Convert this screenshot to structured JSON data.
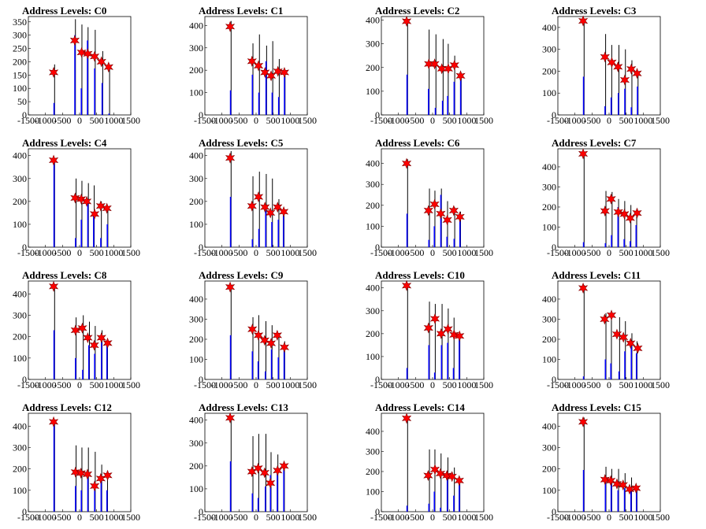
{
  "colors": {
    "outline": "#000000",
    "histogram": "#0000ff",
    "marker": "#ff0000",
    "frame": "#000000"
  },
  "chart_data": {
    "type": "bar",
    "xlim": [
      -1500,
      1500
    ],
    "xticks": [
      "-1500",
      "-1000",
      "-500",
      "0",
      "500",
      "1000",
      "1500"
    ],
    "grid": false,
    "legend": "none",
    "panels": [
      {
        "title": "Address Levels: C0",
        "ylim": [
          0,
          370
        ],
        "yticks": [
          "0",
          "50",
          "100",
          "150",
          "200",
          "250",
          "300",
          "350"
        ],
        "spikes": [
          [
            -750,
            190,
            45
          ],
          [
            -140,
            360,
            300
          ],
          [
            50,
            340,
            100
          ],
          [
            230,
            330,
            280
          ],
          [
            440,
            320,
            175
          ],
          [
            660,
            240,
            120
          ],
          [
            860,
            180,
            5
          ]
        ],
        "markers": [
          [
            -760,
            160
          ],
          [
            -140,
            280
          ],
          [
            60,
            235
          ],
          [
            240,
            230
          ],
          [
            440,
            220
          ],
          [
            640,
            200
          ],
          [
            850,
            180
          ]
        ]
      },
      {
        "title": "Address Levels: C1",
        "ylim": [
          0,
          440
        ],
        "yticks": [
          "0",
          "100",
          "200",
          "300",
          "400"
        ],
        "spikes": [
          [
            -750,
            420,
            110
          ],
          [
            -110,
            320,
            180
          ],
          [
            80,
            360,
            100
          ],
          [
            290,
            310,
            240
          ],
          [
            470,
            330,
            100
          ],
          [
            660,
            250,
            80
          ],
          [
            830,
            190,
            170
          ]
        ],
        "markers": [
          [
            -760,
            395
          ],
          [
            -120,
            240
          ],
          [
            70,
            220
          ],
          [
            260,
            190
          ],
          [
            440,
            175
          ],
          [
            640,
            195
          ],
          [
            830,
            190
          ]
        ]
      },
      {
        "title": "Address Levels: C2",
        "ylim": [
          0,
          415
        ],
        "yticks": [
          "0",
          "100",
          "200",
          "300",
          "400"
        ],
        "spikes": [
          [
            -750,
            400,
            170
          ],
          [
            -120,
            360,
            110
          ],
          [
            80,
            340,
            30
          ],
          [
            290,
            320,
            60
          ],
          [
            440,
            300,
            80
          ],
          [
            630,
            250,
            140
          ],
          [
            820,
            170,
            160
          ]
        ],
        "markers": [
          [
            -760,
            395
          ],
          [
            -110,
            215
          ],
          [
            60,
            215
          ],
          [
            270,
            195
          ],
          [
            460,
            195
          ],
          [
            640,
            210
          ],
          [
            820,
            165
          ]
        ]
      },
      {
        "title": "Address Levels: C3",
        "ylim": [
          0,
          450
        ],
        "yticks": [
          "0",
          "100",
          "200",
          "300",
          "400"
        ],
        "spikes": [
          [
            -750,
            440,
            175
          ],
          [
            -120,
            370,
            40
          ],
          [
            60,
            320,
            80
          ],
          [
            270,
            320,
            100
          ],
          [
            460,
            300,
            120
          ],
          [
            650,
            250,
            35
          ],
          [
            830,
            200,
            130
          ]
        ],
        "markers": [
          [
            -760,
            430
          ],
          [
            -120,
            265
          ],
          [
            80,
            240
          ],
          [
            260,
            220
          ],
          [
            460,
            160
          ],
          [
            650,
            210
          ],
          [
            820,
            190
          ]
        ]
      },
      {
        "title": "Address Levels: C4",
        "ylim": [
          0,
          430
        ],
        "yticks": [
          "0",
          "100",
          "200",
          "300",
          "400"
        ],
        "spikes": [
          [
            -750,
            380,
            375
          ],
          [
            -120,
            300,
            40
          ],
          [
            50,
            290,
            120
          ],
          [
            240,
            280,
            200
          ],
          [
            410,
            270,
            140
          ],
          [
            620,
            200,
            40
          ],
          [
            810,
            175,
            100
          ]
        ],
        "markers": [
          [
            -760,
            380
          ],
          [
            -130,
            215
          ],
          [
            50,
            210
          ],
          [
            210,
            200
          ],
          [
            440,
            145
          ],
          [
            620,
            180
          ],
          [
            800,
            170
          ]
        ]
      },
      {
        "title": "Address Levels: C5",
        "ylim": [
          0,
          430
        ],
        "yticks": [
          "0",
          "100",
          "200",
          "300",
          "400"
        ],
        "spikes": [
          [
            -750,
            420,
            220
          ],
          [
            -110,
            310,
            35
          ],
          [
            80,
            330,
            80
          ],
          [
            280,
            320,
            180
          ],
          [
            460,
            300,
            110
          ],
          [
            650,
            210,
            120
          ],
          [
            800,
            170,
            150
          ]
        ],
        "markers": [
          [
            -760,
            390
          ],
          [
            -120,
            180
          ],
          [
            70,
            220
          ],
          [
            260,
            175
          ],
          [
            420,
            150
          ],
          [
            630,
            175
          ],
          [
            810,
            155
          ]
        ]
      },
      {
        "title": "Address Levels: C6",
        "ylim": [
          0,
          470
        ],
        "yticks": [
          "0",
          "100",
          "200",
          "300",
          "400"
        ],
        "spikes": [
          [
            -750,
            420,
            160
          ],
          [
            -110,
            280,
            35
          ],
          [
            50,
            270,
            100
          ],
          [
            240,
            280,
            250
          ],
          [
            420,
            220,
            50
          ],
          [
            630,
            190,
            40
          ],
          [
            800,
            170,
            150
          ]
        ],
        "markers": [
          [
            -760,
            400
          ],
          [
            -120,
            175
          ],
          [
            60,
            205
          ],
          [
            240,
            160
          ],
          [
            430,
            130
          ],
          [
            620,
            175
          ],
          [
            800,
            145
          ]
        ]
      },
      {
        "title": "Address Levels: C7",
        "ylim": [
          0,
          490
        ],
        "yticks": [
          "0",
          "100",
          "200",
          "300",
          "400"
        ],
        "spikes": [
          [
            -750,
            470,
            25
          ],
          [
            -110,
            280,
            20
          ],
          [
            70,
            275,
            60
          ],
          [
            260,
            240,
            200
          ],
          [
            440,
            230,
            40
          ],
          [
            620,
            210,
            30
          ],
          [
            790,
            190,
            110
          ]
        ],
        "markers": [
          [
            -760,
            465
          ],
          [
            -120,
            180
          ],
          [
            60,
            240
          ],
          [
            270,
            175
          ],
          [
            450,
            165
          ],
          [
            620,
            145
          ],
          [
            820,
            170
          ]
        ]
      },
      {
        "title": "Address Levels: C8",
        "ylim": [
          0,
          460
        ],
        "yticks": [
          "0",
          "100",
          "200",
          "300",
          "400"
        ],
        "spikes": [
          [
            -750,
            440,
            230
          ],
          [
            -120,
            290,
            100
          ],
          [
            90,
            300,
            45
          ],
          [
            270,
            270,
            160
          ],
          [
            440,
            250,
            120
          ],
          [
            640,
            230,
            200
          ],
          [
            800,
            180,
            160
          ]
        ],
        "markers": [
          [
            -760,
            435
          ],
          [
            -120,
            230
          ],
          [
            80,
            240
          ],
          [
            240,
            195
          ],
          [
            430,
            160
          ],
          [
            640,
            195
          ],
          [
            820,
            170
          ]
        ]
      },
      {
        "title": "Address Levels: C9",
        "ylim": [
          0,
          490
        ],
        "yticks": [
          "0",
          "100",
          "200",
          "300",
          "400"
        ],
        "spikes": [
          [
            -750,
            470,
            220
          ],
          [
            -110,
            310,
            140
          ],
          [
            60,
            320,
            90
          ],
          [
            270,
            290,
            40
          ],
          [
            450,
            270,
            150
          ],
          [
            650,
            230,
            110
          ],
          [
            820,
            190,
            160
          ]
        ],
        "markers": [
          [
            -760,
            460
          ],
          [
            -110,
            250
          ],
          [
            70,
            220
          ],
          [
            250,
            195
          ],
          [
            440,
            180
          ],
          [
            620,
            220
          ],
          [
            830,
            160
          ]
        ]
      },
      {
        "title": "Address Levels: C10",
        "ylim": [
          0,
          430
        ],
        "yticks": [
          "0",
          "100",
          "200",
          "300",
          "400"
        ],
        "spikes": [
          [
            -750,
            420,
            50
          ],
          [
            -110,
            340,
            150
          ],
          [
            60,
            330,
            30
          ],
          [
            260,
            330,
            150
          ],
          [
            440,
            310,
            160
          ],
          [
            610,
            270,
            50
          ],
          [
            780,
            190,
            180
          ]
        ],
        "markers": [
          [
            -760,
            410
          ],
          [
            -120,
            225
          ],
          [
            70,
            265
          ],
          [
            250,
            200
          ],
          [
            450,
            220
          ],
          [
            630,
            195
          ],
          [
            790,
            190
          ]
        ]
      },
      {
        "title": "Address Levels: C11",
        "ylim": [
          0,
          490
        ],
        "yticks": [
          "0",
          "100",
          "200",
          "300",
          "400"
        ],
        "spikes": [
          [
            -750,
            470,
            15
          ],
          [
            -110,
            330,
            100
          ],
          [
            50,
            320,
            80
          ],
          [
            290,
            310,
            40
          ],
          [
            460,
            290,
            140
          ],
          [
            650,
            230,
            170
          ],
          [
            800,
            190,
            130
          ]
        ],
        "markers": [
          [
            -760,
            455
          ],
          [
            -130,
            300
          ],
          [
            70,
            320
          ],
          [
            230,
            225
          ],
          [
            420,
            210
          ],
          [
            630,
            180
          ],
          [
            840,
            155
          ]
        ]
      },
      {
        "title": "Address Levels: C12",
        "ylim": [
          0,
          460
        ],
        "yticks": [
          "0",
          "100",
          "200",
          "300",
          "400"
        ],
        "spikes": [
          [
            -750,
            430,
            420
          ],
          [
            -120,
            310,
            120
          ],
          [
            50,
            300,
            100
          ],
          [
            240,
            300,
            160
          ],
          [
            440,
            280,
            110
          ],
          [
            630,
            220,
            150
          ],
          [
            800,
            180,
            100
          ]
        ],
        "markers": [
          [
            -760,
            420
          ],
          [
            -120,
            185
          ],
          [
            40,
            180
          ],
          [
            230,
            175
          ],
          [
            440,
            120
          ],
          [
            620,
            155
          ],
          [
            820,
            170
          ]
        ]
      },
      {
        "title": "Address Levels: C13",
        "ylim": [
          0,
          430
        ],
        "yticks": [
          "0",
          "100",
          "200",
          "300",
          "400"
        ],
        "spikes": [
          [
            -750,
            420,
            220
          ],
          [
            -110,
            330,
            80
          ],
          [
            60,
            340,
            60
          ],
          [
            270,
            340,
            110
          ],
          [
            420,
            260,
            160
          ],
          [
            620,
            250,
            170
          ],
          [
            810,
            210,
            200
          ]
        ],
        "markers": [
          [
            -760,
            410
          ],
          [
            -120,
            175
          ],
          [
            60,
            190
          ],
          [
            250,
            170
          ],
          [
            420,
            125
          ],
          [
            630,
            180
          ],
          [
            820,
            200
          ]
        ]
      },
      {
        "title": "Address Levels: C14",
        "ylim": [
          0,
          490
        ],
        "yticks": [
          "0",
          "100",
          "200",
          "300",
          "400"
        ],
        "spikes": [
          [
            -750,
            470,
            30
          ],
          [
            -110,
            310,
            40
          ],
          [
            50,
            310,
            100
          ],
          [
            230,
            290,
            20
          ],
          [
            430,
            270,
            190
          ],
          [
            620,
            220,
            80
          ],
          [
            780,
            170,
            150
          ]
        ],
        "markers": [
          [
            -760,
            465
          ],
          [
            -130,
            180
          ],
          [
            70,
            210
          ],
          [
            230,
            190
          ],
          [
            420,
            180
          ],
          [
            570,
            175
          ],
          [
            780,
            155
          ]
        ]
      },
      {
        "title": "Address Levels: C15",
        "ylim": [
          0,
          460
        ],
        "yticks": [
          "0",
          "100",
          "200",
          "300",
          "400"
        ],
        "spikes": [
          [
            -750,
            440,
            195
          ],
          [
            -110,
            210,
            150
          ],
          [
            60,
            200,
            160
          ],
          [
            260,
            200,
            100
          ],
          [
            450,
            180,
            110
          ],
          [
            640,
            160,
            100
          ],
          [
            800,
            120,
            110
          ]
        ],
        "markers": [
          [
            -760,
            420
          ],
          [
            -120,
            150
          ],
          [
            50,
            145
          ],
          [
            230,
            130
          ],
          [
            410,
            125
          ],
          [
            600,
            105
          ],
          [
            790,
            110
          ]
        ]
      }
    ]
  }
}
